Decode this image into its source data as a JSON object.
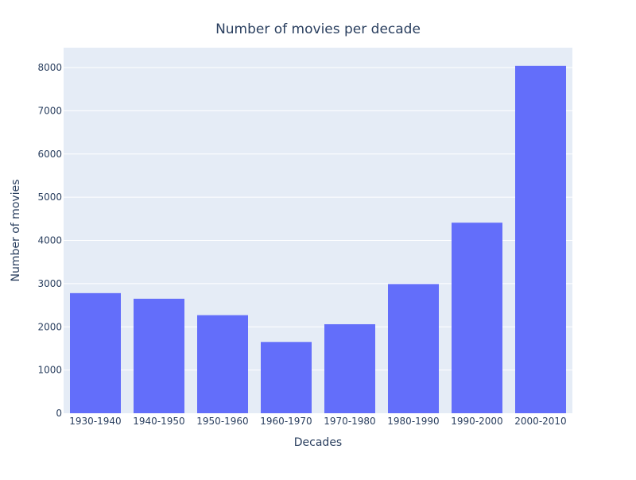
{
  "chart_data": {
    "type": "bar",
    "title": "Number of movies per decade",
    "xlabel": "Decades",
    "ylabel": "Number of movies",
    "categories": [
      "1930-1940",
      "1940-1950",
      "1950-1960",
      "1960-1970",
      "1970-1980",
      "1980-1990",
      "1990-2000",
      "2000-2010"
    ],
    "values": [
      2780,
      2650,
      2270,
      1650,
      2060,
      2990,
      4410,
      8040
    ],
    "ylim": [
      0,
      8460
    ],
    "yticks": [
      0,
      1000,
      2000,
      3000,
      4000,
      5000,
      6000,
      7000,
      8000
    ],
    "grid": true,
    "legend": "none",
    "colors": {
      "bar": "#636efa",
      "plot_bg": "#e5ecf6",
      "grid": "#ffffff",
      "text": "#2a3f5f"
    }
  }
}
